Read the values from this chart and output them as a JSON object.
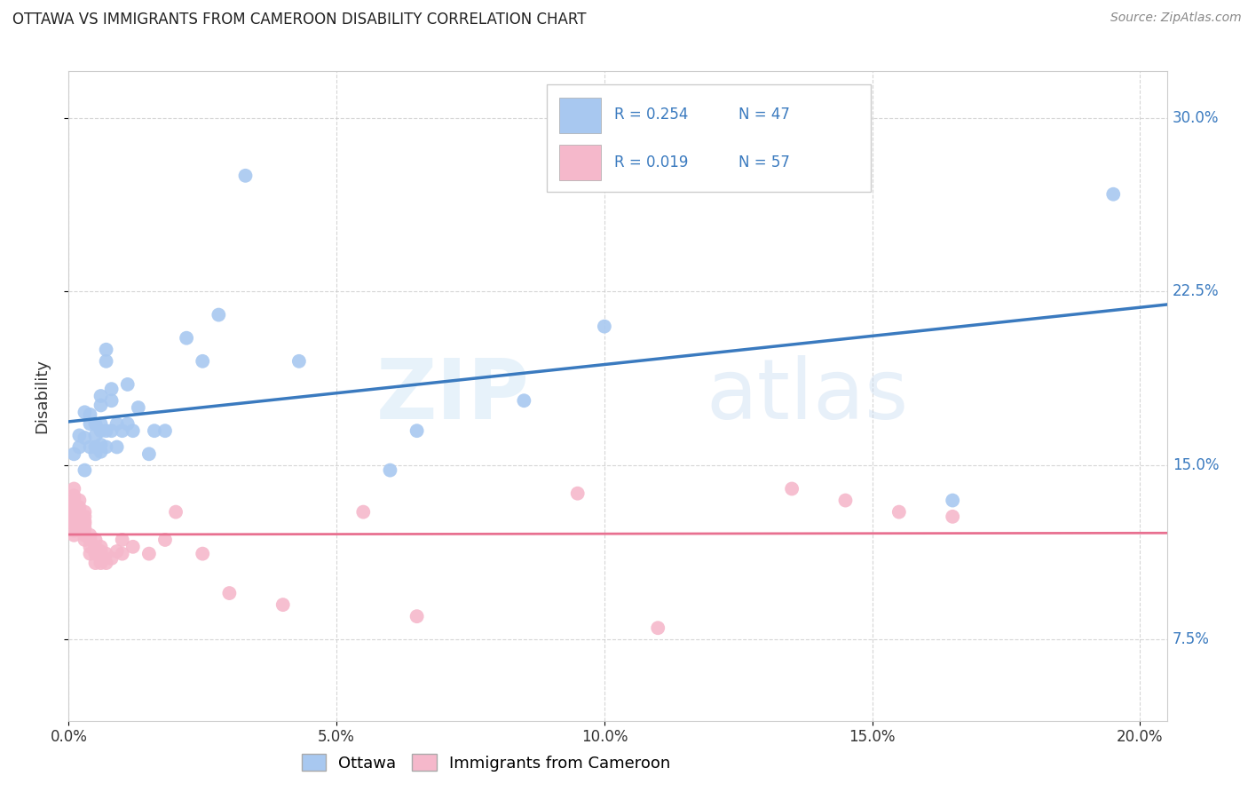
{
  "title": "OTTAWA VS IMMIGRANTS FROM CAMEROON DISABILITY CORRELATION CHART",
  "source": "Source: ZipAtlas.com",
  "ylabel": "Disability",
  "xlabel_ticks": [
    "0.0%",
    "5.0%",
    "10.0%",
    "15.0%",
    "20.0%"
  ],
  "ylabel_ticks_right": [
    "30.0%",
    "22.5%",
    "15.0%",
    "7.5%"
  ],
  "xlim": [
    0.0,
    0.205
  ],
  "ylim": [
    0.04,
    0.32
  ],
  "ottawa_R": 0.254,
  "ottawa_N": 47,
  "cameroon_R": 0.019,
  "cameroon_N": 57,
  "ottawa_color": "#a8c8f0",
  "cameroon_color": "#f5b8cb",
  "ottawa_line_color": "#3a7abf",
  "cameroon_line_color": "#e87090",
  "legend_label_1": "Ottawa",
  "legend_label_2": "Immigrants from Cameroon",
  "watermark_zip": "ZIP",
  "watermark_atlas": "atlas",
  "grid_color": "#cccccc",
  "ottawa_x": [
    0.001,
    0.002,
    0.002,
    0.003,
    0.003,
    0.003,
    0.004,
    0.004,
    0.004,
    0.005,
    0.005,
    0.005,
    0.005,
    0.006,
    0.006,
    0.006,
    0.006,
    0.006,
    0.006,
    0.007,
    0.007,
    0.007,
    0.007,
    0.008,
    0.008,
    0.008,
    0.009,
    0.009,
    0.01,
    0.011,
    0.011,
    0.012,
    0.013,
    0.015,
    0.016,
    0.018,
    0.022,
    0.025,
    0.028,
    0.033,
    0.043,
    0.06,
    0.065,
    0.085,
    0.1,
    0.165,
    0.195
  ],
  "ottawa_y": [
    0.155,
    0.158,
    0.163,
    0.148,
    0.162,
    0.173,
    0.158,
    0.168,
    0.172,
    0.155,
    0.158,
    0.163,
    0.168,
    0.156,
    0.159,
    0.165,
    0.168,
    0.176,
    0.18,
    0.158,
    0.165,
    0.195,
    0.2,
    0.165,
    0.178,
    0.183,
    0.158,
    0.168,
    0.165,
    0.168,
    0.185,
    0.165,
    0.175,
    0.155,
    0.165,
    0.165,
    0.205,
    0.195,
    0.215,
    0.275,
    0.195,
    0.148,
    0.165,
    0.178,
    0.21,
    0.135,
    0.267
  ],
  "cameroon_x": [
    0.001,
    0.001,
    0.001,
    0.001,
    0.001,
    0.001,
    0.001,
    0.001,
    0.001,
    0.001,
    0.001,
    0.001,
    0.002,
    0.002,
    0.002,
    0.002,
    0.002,
    0.002,
    0.003,
    0.003,
    0.003,
    0.003,
    0.003,
    0.003,
    0.003,
    0.004,
    0.004,
    0.004,
    0.004,
    0.005,
    0.005,
    0.005,
    0.005,
    0.006,
    0.006,
    0.006,
    0.007,
    0.007,
    0.008,
    0.009,
    0.01,
    0.01,
    0.012,
    0.015,
    0.018,
    0.02,
    0.025,
    0.03,
    0.04,
    0.055,
    0.065,
    0.095,
    0.11,
    0.135,
    0.145,
    0.155,
    0.165
  ],
  "cameroon_y": [
    0.128,
    0.13,
    0.133,
    0.135,
    0.137,
    0.14,
    0.125,
    0.128,
    0.132,
    0.12,
    0.122,
    0.125,
    0.128,
    0.132,
    0.135,
    0.128,
    0.125,
    0.122,
    0.12,
    0.123,
    0.126,
    0.13,
    0.128,
    0.125,
    0.118,
    0.12,
    0.118,
    0.115,
    0.112,
    0.118,
    0.115,
    0.112,
    0.108,
    0.115,
    0.113,
    0.108,
    0.112,
    0.108,
    0.11,
    0.113,
    0.112,
    0.118,
    0.115,
    0.112,
    0.118,
    0.13,
    0.112,
    0.095,
    0.09,
    0.13,
    0.085,
    0.138,
    0.08,
    0.14,
    0.135,
    0.13,
    0.128
  ]
}
